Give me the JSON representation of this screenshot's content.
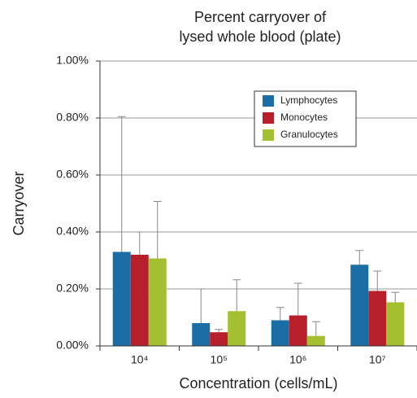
{
  "chart_data": {
    "type": "bar",
    "title": [
      "Percent carryover of",
      "lysed whole blood (plate)"
    ],
    "x_label": "Concentration (cells/mL)",
    "y_label": "Carryover",
    "categories": [
      "10⁴",
      "10⁵",
      "10⁶",
      "10⁷"
    ],
    "series": [
      {
        "name": "Lymphocytes",
        "color": "#1b6ea5",
        "values": [
          0.33,
          0.08,
          0.09,
          0.285
        ],
        "errors": [
          0.475,
          0.12,
          0.045,
          0.05
        ]
      },
      {
        "name": "Monocytes",
        "color": "#b71f2b",
        "values": [
          0.32,
          0.048,
          0.107,
          0.193
        ],
        "errors": [
          0.08,
          0.01,
          0.113,
          0.07
        ]
      },
      {
        "name": "Granulocytes",
        "color": "#a4bf2f",
        "values": [
          0.307,
          0.122,
          0.035,
          0.153
        ],
        "errors": [
          0.2,
          0.11,
          0.05,
          0.035
        ]
      }
    ],
    "ylim": [
      0,
      1
    ],
    "yticks": [
      {
        "value": 0,
        "label": "0.00%"
      },
      {
        "value": 0.2,
        "label": "0.20%"
      },
      {
        "value": 0.4,
        "label": "0.40%"
      },
      {
        "value": 0.6,
        "label": "0.60%"
      },
      {
        "value": 0.8,
        "label": "0.80%"
      },
      {
        "value": 1,
        "label": "1.00%"
      }
    ],
    "grid": true,
    "legend": "upper-right"
  }
}
